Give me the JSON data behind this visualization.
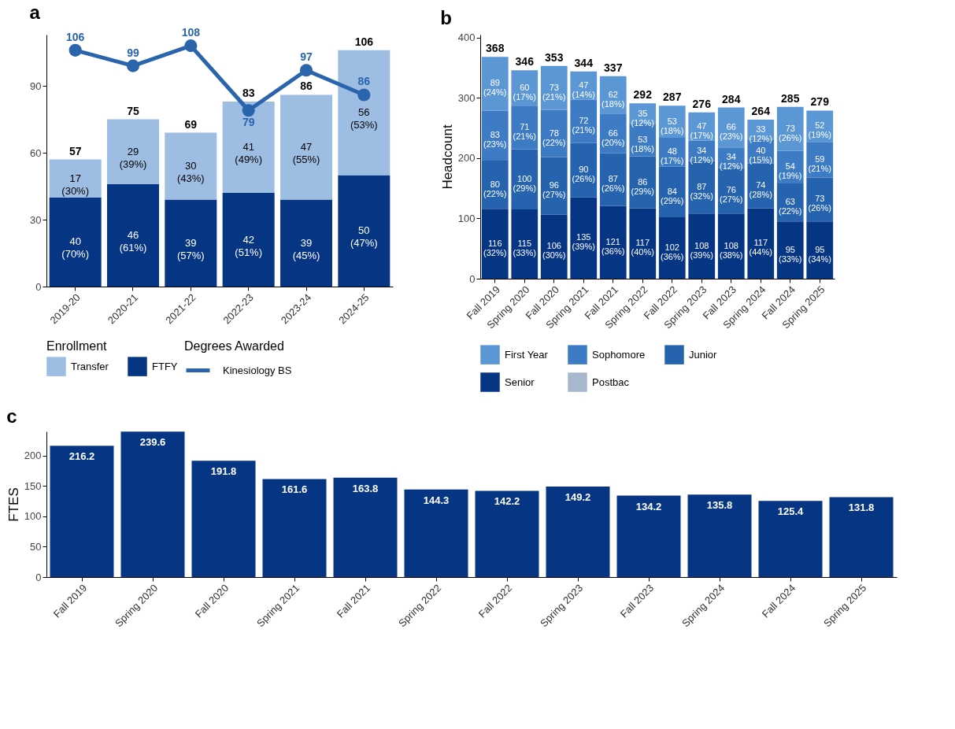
{
  "chart_data": [
    {
      "type": "bar",
      "title": "a",
      "stacked": true,
      "categories": [
        "2019-20",
        "2020-21",
        "2021-22",
        "2022-23",
        "2023-24",
        "2024-25"
      ],
      "series": [
        {
          "name": "FTFY",
          "color": "#063584",
          "values": [
            40,
            46,
            39,
            42,
            39,
            50
          ],
          "value_labels": [
            "40\n(70%)",
            "46\n(61%)",
            "39\n(57%)",
            "42\n(51%)",
            "39\n(45%)",
            "50\n(47%)"
          ]
        },
        {
          "name": "Transfer",
          "color": "#9dbde2",
          "values": [
            17,
            29,
            30,
            41,
            47,
            56
          ],
          "value_labels": [
            "17\n(30%)",
            "29\n(39%)",
            "30\n(43%)",
            "41\n(49%)",
            "47\n(55%)",
            "56\n(53%)"
          ]
        },
        {
          "name": "Kinesiology BS",
          "type": "line",
          "color": "#2a64ad",
          "values": [
            106,
            99,
            108,
            79,
            97,
            86
          ],
          "value_labels": [
            "106",
            "99",
            "108",
            "79",
            "97",
            "86"
          ]
        }
      ],
      "totals": [
        "57",
        "75",
        "69",
        "83",
        "86",
        "106"
      ],
      "ylim": [
        0,
        113
      ],
      "yticks": [
        0,
        30,
        60,
        90
      ],
      "legend": "bottom",
      "legend_title": [
        "Enrollment",
        "Degrees Awarded"
      ],
      "marker": "circle",
      "grid": false
    },
    {
      "type": "bar",
      "title": "b",
      "stacked": true,
      "ylabel": "Headcount",
      "categories": [
        "Fall 2019",
        "Spring 2020",
        "Fall 2020",
        "Spring 2021",
        "Fall 2021",
        "Spring 2022",
        "Fall 2022",
        "Spring 2023",
        "Fall 2023",
        "Spring 2024",
        "Fall 2024",
        "Spring 2025"
      ],
      "series": [
        {
          "name": "Postbac",
          "color": "#a8b8cc",
          "values": [
            null,
            null,
            null,
            null,
            null,
            null,
            null,
            null,
            null,
            null,
            null,
            null
          ]
        },
        {
          "name": "Senior",
          "color": "#063584",
          "values": [
            116,
            115,
            106,
            135,
            121,
            117,
            102,
            108,
            108,
            117,
            95,
            95
          ],
          "value_labels": [
            "116\n(32%)",
            "115\n(33%)",
            "106\n(30%)",
            "135\n(39%)",
            "121\n(36%)",
            "117\n(40%)",
            "102\n(36%)",
            "108\n(39%)",
            "108\n(38%)",
            "117\n(44%)",
            "95\n(33%)",
            "95\n(34%)"
          ]
        },
        {
          "name": "Junior",
          "color": "#2563ae",
          "values": [
            80,
            100,
            96,
            90,
            87,
            86,
            84,
            87,
            76,
            74,
            63,
            73
          ],
          "value_labels": [
            "80\n(22%)",
            "100\n(29%)",
            "96\n(27%)",
            "90\n(26%)",
            "87\n(26%)",
            "86\n(29%)",
            "84\n(29%)",
            "87\n(32%)",
            "76\n(27%)",
            "74\n(28%)",
            "63\n(22%)",
            "73\n(26%)"
          ]
        },
        {
          "name": "Sophomore",
          "color": "#3d7cc4",
          "values": [
            83,
            71,
            78,
            72,
            66,
            53,
            48,
            34,
            34,
            40,
            54,
            59
          ],
          "value_labels": [
            "83\n(23%)",
            "71\n(21%)",
            "78\n(22%)",
            "72\n(21%)",
            "66\n(20%)",
            "53\n(18%)",
            "48\n(17%)",
            "34\n(12%)",
            "34\n(12%)",
            "40\n(15%)",
            "54\n(19%)",
            "59\n(21%)"
          ]
        },
        {
          "name": "First Year",
          "color": "#5b97d5",
          "values": [
            89,
            60,
            73,
            47,
            62,
            35,
            53,
            47,
            66,
            33,
            73,
            52
          ],
          "value_labels": [
            "89\n(24%)",
            "60\n(17%)",
            "73\n(21%)",
            "47\n(14%)",
            "62\n(18%)",
            "35\n(12%)",
            "53\n(18%)",
            "47\n(17%)",
            "66\n(23%)",
            "33\n(12%)",
            "73\n(26%)",
            "52\n(19%)"
          ]
        }
      ],
      "totals": [
        "368",
        "346",
        "353",
        "344",
        "337",
        "292",
        "287",
        "276",
        "284",
        "264",
        "285",
        "279"
      ],
      "ylim": [
        0,
        405
      ],
      "yticks": [
        0,
        100,
        200,
        300,
        400
      ],
      "legend": "bottom",
      "grid": false
    },
    {
      "type": "bar",
      "title": "c",
      "ylabel": "FTES",
      "categories": [
        "Fall 2019",
        "Spring 2020",
        "Fall 2020",
        "Spring 2021",
        "Fall 2021",
        "Spring 2022",
        "Fall 2022",
        "Spring 2023",
        "Fall 2023",
        "Spring 2024",
        "Fall 2024",
        "Spring 2025"
      ],
      "values": [
        216.2,
        239.6,
        191.8,
        161.6,
        163.8,
        144.3,
        142.2,
        149.2,
        134.2,
        135.8,
        125.4,
        131.8
      ],
      "color": "#063584",
      "data_labels": true,
      "ylim": [
        0,
        240
      ],
      "yticks": [
        0,
        50,
        100,
        150,
        200
      ],
      "grid": false
    }
  ]
}
